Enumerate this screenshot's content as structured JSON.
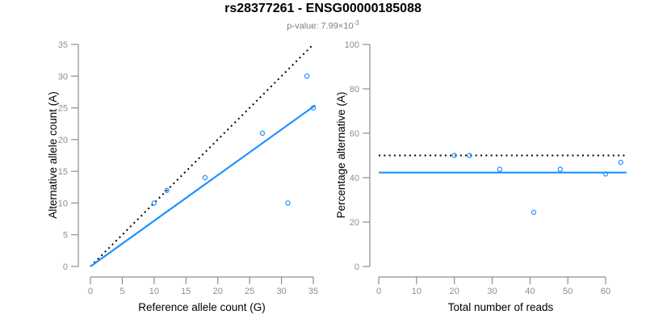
{
  "title": "rs28377261 - ENSG00000185088",
  "subtitle": {
    "text": "p-value: 7.99×10",
    "exponent": "-3"
  },
  "colors": {
    "point": "#1E90FF",
    "fit_line": "#1E90FF",
    "reference_line": "#000000",
    "axis": "#8e8e8e",
    "tick_label": "#8e8e8e",
    "axis_title": "#000000",
    "subtitle_text": "#7f7f7f",
    "title_text": "#000000",
    "background": "#ffffff"
  },
  "chart_data": [
    {
      "type": "scatter",
      "title": "",
      "xlabel": "Reference allele count (G)",
      "ylabel": "Alternative allele count (A)",
      "xlim": [
        0,
        35
      ],
      "ylim": [
        0,
        35
      ],
      "xticks": [
        0,
        5,
        10,
        15,
        20,
        25,
        30,
        35
      ],
      "yticks": [
        0,
        5,
        10,
        15,
        20,
        25,
        30,
        35
      ],
      "grid": false,
      "legend": "none",
      "marker": "open-circle",
      "points": [
        {
          "x": 10,
          "y": 10
        },
        {
          "x": 12,
          "y": 12
        },
        {
          "x": 18,
          "y": 14
        },
        {
          "x": 27,
          "y": 21
        },
        {
          "x": 31,
          "y": 10
        },
        {
          "x": 34,
          "y": 30
        },
        {
          "x": 35,
          "y": 25
        }
      ],
      "lines": [
        {
          "name": "identity-line",
          "style": "dotted",
          "color": "#000000",
          "x": [
            0,
            35
          ],
          "y": [
            0,
            35
          ]
        },
        {
          "name": "fit-line",
          "style": "solid",
          "color": "#1E90FF",
          "x": [
            0,
            35.3
          ],
          "y": [
            0,
            25.4
          ]
        }
      ]
    },
    {
      "type": "scatter",
      "title": "",
      "xlabel": "Total number of reads",
      "ylabel": "Percentage alternative (A)",
      "xlim": [
        0,
        65
      ],
      "ylim": [
        0,
        100
      ],
      "xticks": [
        0,
        10,
        20,
        30,
        40,
        50,
        60
      ],
      "yticks": [
        0,
        20,
        40,
        60,
        80,
        100
      ],
      "grid": false,
      "legend": "none",
      "marker": "open-circle",
      "points": [
        {
          "x": 20,
          "y": 50
        },
        {
          "x": 24,
          "y": 50
        },
        {
          "x": 32,
          "y": 43.75
        },
        {
          "x": 41,
          "y": 24.4
        },
        {
          "x": 48,
          "y": 43.75
        },
        {
          "x": 60,
          "y": 41.67
        },
        {
          "x": 64,
          "y": 46.88
        }
      ],
      "lines": [
        {
          "name": "expected-50pct-line",
          "style": "dotted",
          "color": "#000000",
          "x": [
            0,
            65.5
          ],
          "y": [
            50,
            50
          ]
        },
        {
          "name": "fit-line",
          "style": "solid",
          "color": "#1E90FF",
          "x": [
            0,
            65.5
          ],
          "y": [
            42.3,
            42.3
          ]
        }
      ]
    }
  ]
}
